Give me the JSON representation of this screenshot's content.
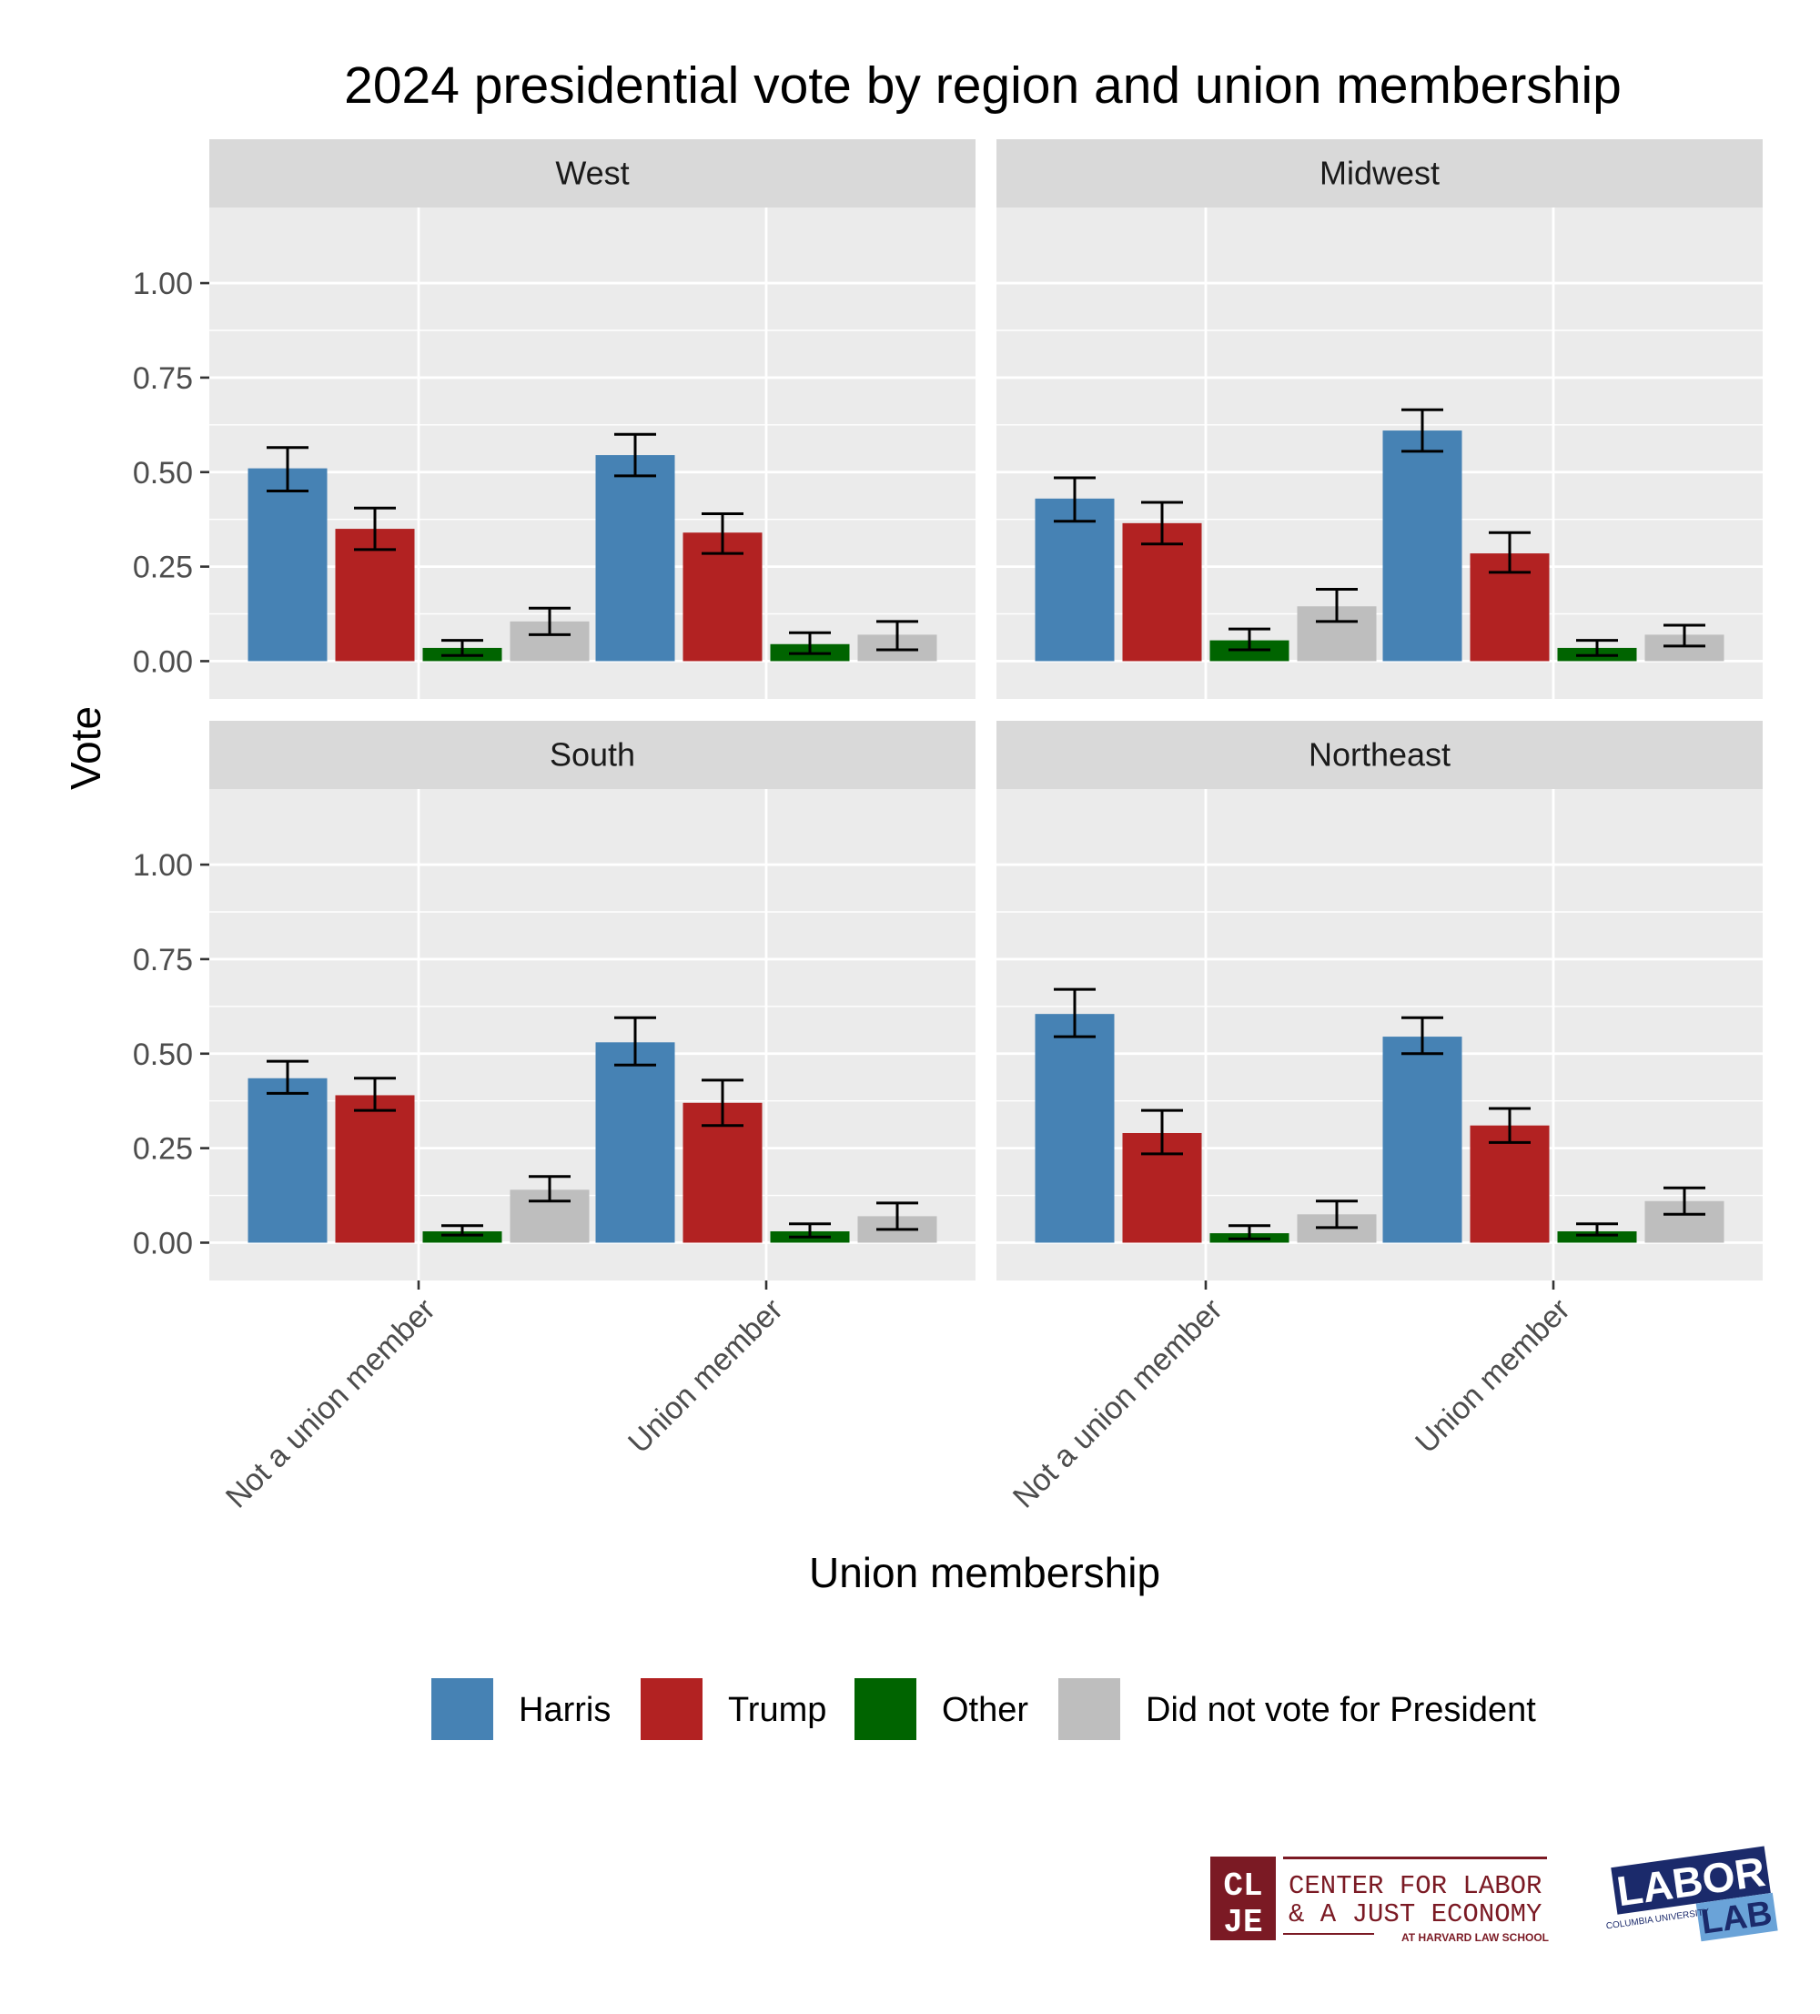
{
  "chart_data": {
    "type": "bar",
    "title": "2024 presidential vote by region and union membership",
    "xlabel": "Union membership",
    "ylabel": "Vote",
    "ylim": [
      -0.1,
      1.2
    ],
    "yticks": [
      "1.00",
      "0.75",
      "0.50",
      "0.25",
      "0.00"
    ],
    "ytick_values": [
      1.0,
      0.75,
      0.5,
      0.25,
      0.0
    ],
    "categories": [
      "Not a union member",
      "Union member"
    ],
    "grid": true,
    "legend_position": "bottom",
    "series_info": [
      {
        "name": "Harris",
        "color": "#4682b4"
      },
      {
        "name": "Trump",
        "color": "#b22222"
      },
      {
        "name": "Other",
        "color": "#006400"
      },
      {
        "name": "Did not vote for President",
        "color": "#bebebe"
      }
    ],
    "panels": [
      {
        "name": "West",
        "groups": [
          {
            "values": [
              0.51,
              0.35,
              0.035,
              0.105
            ],
            "lower": [
              0.45,
              0.295,
              0.015,
              0.07
            ],
            "upper": [
              0.565,
              0.405,
              0.055,
              0.14
            ]
          },
          {
            "values": [
              0.545,
              0.34,
              0.045,
              0.07
            ],
            "lower": [
              0.49,
              0.285,
              0.02,
              0.03
            ],
            "upper": [
              0.6,
              0.39,
              0.075,
              0.105
            ]
          }
        ]
      },
      {
        "name": "Midwest",
        "groups": [
          {
            "values": [
              0.43,
              0.365,
              0.055,
              0.145
            ],
            "lower": [
              0.37,
              0.31,
              0.03,
              0.105
            ],
            "upper": [
              0.485,
              0.42,
              0.085,
              0.19
            ]
          },
          {
            "values": [
              0.61,
              0.285,
              0.035,
              0.07
            ],
            "lower": [
              0.555,
              0.235,
              0.015,
              0.04
            ],
            "upper": [
              0.665,
              0.34,
              0.055,
              0.095
            ]
          }
        ]
      },
      {
        "name": "South",
        "groups": [
          {
            "values": [
              0.435,
              0.39,
              0.03,
              0.14
            ],
            "lower": [
              0.395,
              0.35,
              0.02,
              0.11
            ],
            "upper": [
              0.48,
              0.435,
              0.045,
              0.175
            ]
          },
          {
            "values": [
              0.53,
              0.37,
              0.03,
              0.07
            ],
            "lower": [
              0.47,
              0.31,
              0.015,
              0.035
            ],
            "upper": [
              0.595,
              0.43,
              0.05,
              0.105
            ]
          }
        ]
      },
      {
        "name": "Northeast",
        "groups": [
          {
            "values": [
              0.605,
              0.29,
              0.025,
              0.075
            ],
            "lower": [
              0.545,
              0.235,
              0.01,
              0.04
            ],
            "upper": [
              0.67,
              0.35,
              0.045,
              0.11
            ]
          },
          {
            "values": [
              0.545,
              0.31,
              0.03,
              0.11
            ],
            "lower": [
              0.5,
              0.265,
              0.02,
              0.075
            ],
            "upper": [
              0.595,
              0.355,
              0.05,
              0.145
            ]
          }
        ]
      }
    ]
  },
  "logos": {
    "clje_letters": [
      "CL",
      "JE"
    ],
    "clje_line1": "CENTER FOR LABOR",
    "clje_line2": "& A JUST ECONOMY",
    "clje_line3": "AT HARVARD LAW SCHOOL",
    "laborlab_word1": "LABOR",
    "laborlab_word2": "LAB",
    "laborlab_small": "COLUMBIA UNIVERSITY"
  }
}
